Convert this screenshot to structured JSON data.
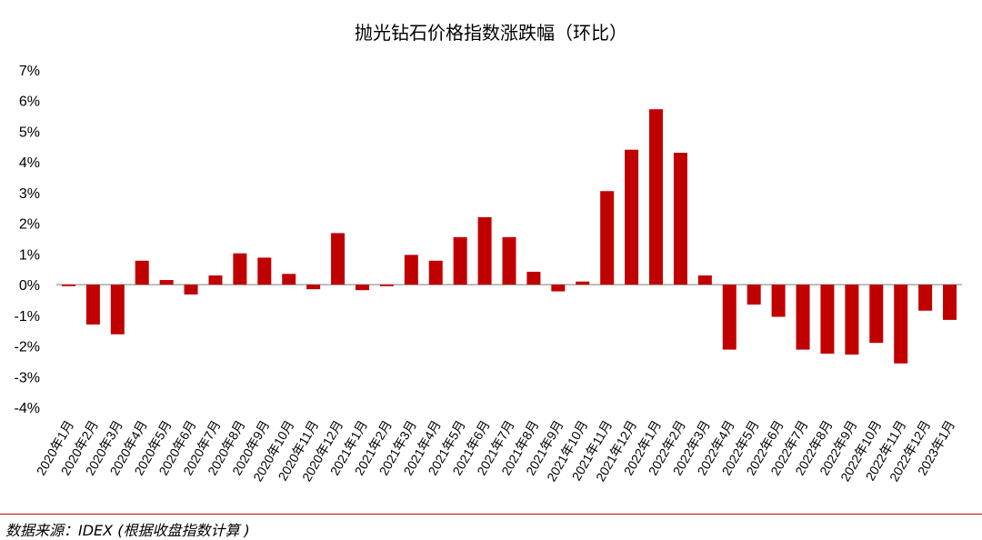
{
  "chart_data": {
    "type": "bar",
    "title": "抛光钻石价格指数涨跌幅（环比）",
    "xlabel": "",
    "ylabel": "",
    "ylim": [
      -4,
      7
    ],
    "yticks": [
      "7%",
      "6%",
      "5%",
      "4%",
      "3%",
      "2%",
      "1%",
      "0%",
      "-1%",
      "-2%",
      "-3%",
      "-4%"
    ],
    "ytick_values": [
      7,
      6,
      5,
      4,
      3,
      2,
      1,
      0,
      -1,
      -2,
      -3,
      -4
    ],
    "grid": false,
    "bar_color": "#c00000",
    "categories": [
      "2020年1月",
      "2020年2月",
      "2020年3月",
      "2020年4月",
      "2020年5月",
      "2020年6月",
      "2020年7月",
      "2020年8月",
      "2020年9月",
      "2020年10月",
      "2020年11月",
      "2020年12月",
      "2021年1月",
      "2021年2月",
      "2021年3月",
      "2021年4月",
      "2021年5月",
      "2021年6月",
      "2021年7月",
      "2021年8月",
      "2021年9月",
      "2021年10月",
      "2021年11月",
      "2021年12月",
      "2022年1月",
      "2022年2月",
      "2022年3月",
      "2022年4月",
      "2022年5月",
      "2022年6月",
      "2022年7月",
      "2022年8月",
      "2022年9月",
      "2022年10月",
      "2022年11月",
      "2022年12月",
      "2023年1月"
    ],
    "values": [
      -0.05,
      -1.3,
      -1.62,
      0.78,
      0.15,
      -0.32,
      0.3,
      1.02,
      0.88,
      0.35,
      -0.15,
      1.68,
      -0.18,
      -0.05,
      0.97,
      0.78,
      1.55,
      2.2,
      1.55,
      0.42,
      -0.22,
      0.1,
      3.05,
      4.4,
      5.72,
      4.3,
      0.3,
      -2.12,
      -0.65,
      -1.05,
      -2.12,
      -2.25,
      -2.28,
      -1.9,
      -2.57,
      -0.85,
      -1.15
    ]
  },
  "footer": {
    "source": "数据来源：IDEX (根据收盘指数计算 )"
  }
}
